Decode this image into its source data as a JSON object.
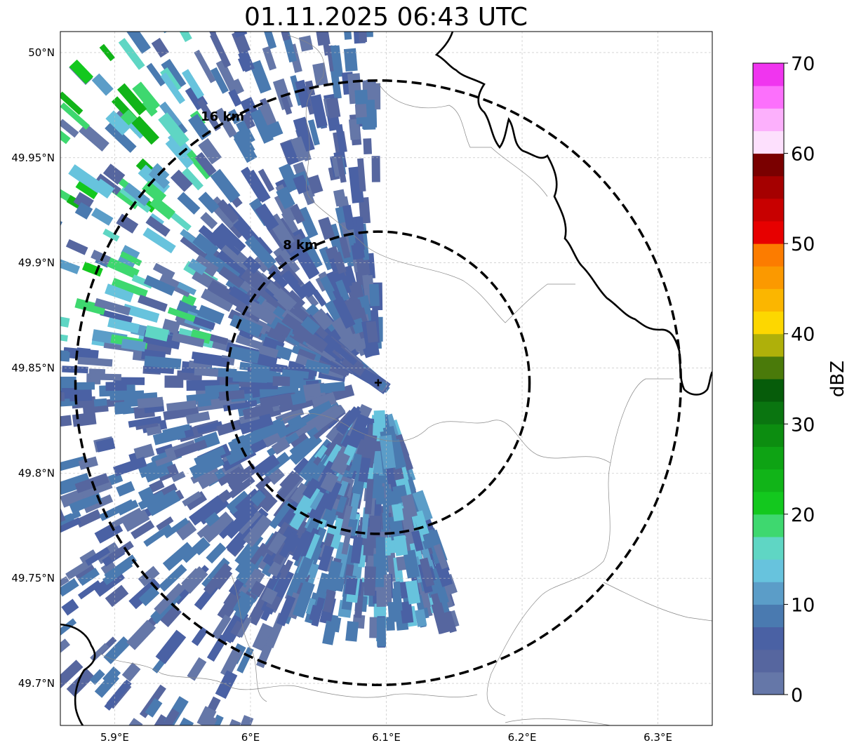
{
  "title": "01.11.2025 06:43 UTC",
  "map": {
    "lon_range": [
      5.86,
      6.34
    ],
    "lat_range": [
      49.68,
      50.01
    ],
    "radar_site": {
      "lon": 6.094,
      "lat": 49.843
    },
    "x_ticks": [
      {
        "value": 5.9,
        "label": "5.9°E"
      },
      {
        "value": 6.0,
        "label": "6°E"
      },
      {
        "value": 6.1,
        "label": "6.1°E"
      },
      {
        "value": 6.2,
        "label": "6.2°E"
      },
      {
        "value": 6.3,
        "label": "6.3°E"
      }
    ],
    "y_ticks": [
      {
        "value": 50.0,
        "label": "50°N"
      },
      {
        "value": 49.95,
        "label": "49.95°N"
      },
      {
        "value": 49.9,
        "label": "49.9°N"
      },
      {
        "value": 49.85,
        "label": "49.85°N"
      },
      {
        "value": 49.8,
        "label": "49.8°N"
      },
      {
        "value": 49.75,
        "label": "49.75°N"
      },
      {
        "value": 49.7,
        "label": "49.7°N"
      }
    ],
    "grid": true,
    "range_rings": [
      {
        "label": "8 km",
        "radius_km": 8
      },
      {
        "label": "16 km",
        "radius_km": 16
      }
    ]
  },
  "colorbar": {
    "label": "dBZ",
    "range": [
      0,
      70
    ],
    "step": 2.5,
    "tick_labels": [
      "0",
      "10",
      "20",
      "30",
      "40",
      "50",
      "60",
      "70"
    ],
    "colors": [
      "#6577a8",
      "#56669f",
      "#4a61a4",
      "#4a7ab0",
      "#5b9dc8",
      "#67c3dd",
      "#5fd6c4",
      "#3ed86f",
      "#13c81e",
      "#11b418",
      "#0ea314",
      "#0c8d10",
      "#0a7510",
      "#065c0a",
      "#4a7a0a",
      "#afb00a",
      "#fdd700",
      "#fbb600",
      "#fb9900",
      "#fc7c00",
      "#e70000",
      "#c80000",
      "#a50000",
      "#7a0000",
      "#fde0fd",
      "#fcb0fc",
      "#fc70fc",
      "#f035ef"
    ]
  }
}
